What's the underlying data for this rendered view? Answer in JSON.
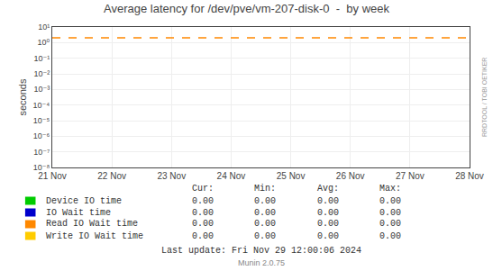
{
  "chart_data": {
    "type": "line",
    "title": "Average latency for /dev/pve/vm-207-disk-0  -  by week",
    "y_label": "seconds",
    "categories": [
      "21 Nov",
      "22 Nov",
      "23 Nov",
      "24 Nov",
      "25 Nov",
      "26 Nov",
      "27 Nov",
      "28 Nov"
    ],
    "log": "y",
    "grid": true,
    "legend": "bottom",
    "ylim": [
      1e-08,
      10
    ],
    "yticks": [
      {
        "value": 1e-08,
        "label": "10⁻⁸"
      },
      {
        "value": 1e-07,
        "label": "10⁻⁷"
      },
      {
        "value": 1e-06,
        "label": "10⁻⁶"
      },
      {
        "value": 1e-05,
        "label": "10⁻⁵"
      },
      {
        "value": 0.0001,
        "label": "10⁻⁴"
      },
      {
        "value": 0.001,
        "label": "10⁻³"
      },
      {
        "value": 0.01,
        "label": "10⁻²"
      },
      {
        "value": 0.1,
        "label": "10⁻¹"
      },
      {
        "value": 1,
        "label": "10⁰"
      },
      {
        "value": 10,
        "label": "10¹"
      }
    ],
    "reference_line": {
      "value": 2.0,
      "color": "#ff8800",
      "line_style": "dashed"
    },
    "table_columns": [
      "Cur:",
      "Min:",
      "Avg:",
      "Max:"
    ],
    "series": [
      {
        "name": "Device IO time",
        "color": "#00cc00",
        "values": [
          null,
          null,
          null,
          null,
          null,
          null,
          null,
          null
        ],
        "table_values": [
          {
            "value": 0,
            "label": "0.00"
          },
          {
            "value": 0,
            "label": "0.00"
          },
          {
            "value": 0,
            "label": "0.00"
          },
          {
            "value": 0,
            "label": "0.00"
          }
        ]
      },
      {
        "name": "IO Wait time",
        "color": "#0000cc",
        "values": [
          null,
          null,
          null,
          null,
          null,
          null,
          null,
          null
        ],
        "table_values": [
          {
            "value": 0,
            "label": "0.00"
          },
          {
            "value": 0,
            "label": "0.00"
          },
          {
            "value": 0,
            "label": "0.00"
          },
          {
            "value": 0,
            "label": "0.00"
          }
        ]
      },
      {
        "name": "Read IO Wait time",
        "color": "#ff8800",
        "values": [
          null,
          null,
          null,
          null,
          null,
          null,
          null,
          null
        ],
        "table_values": [
          {
            "value": 0,
            "label": "0.00"
          },
          {
            "value": 0,
            "label": "0.00"
          },
          {
            "value": 0,
            "label": "0.00"
          },
          {
            "value": 0,
            "label": "0.00"
          }
        ]
      },
      {
        "name": "Write IO Wait time",
        "color": "#ffcc00",
        "values": [
          null,
          null,
          null,
          null,
          null,
          null,
          null,
          null
        ],
        "table_values": [
          {
            "value": 0,
            "label": "0.00"
          },
          {
            "value": 0,
            "label": "0.00"
          },
          {
            "value": 0,
            "label": "0.00"
          },
          {
            "value": 0,
            "label": "0.00"
          }
        ]
      }
    ],
    "annotations": [
      "RRDTOOL / TOBI OETIKER",
      "Last update: Fri Nov 29 12:00:06 2024",
      "Munin 2.0.75"
    ]
  }
}
